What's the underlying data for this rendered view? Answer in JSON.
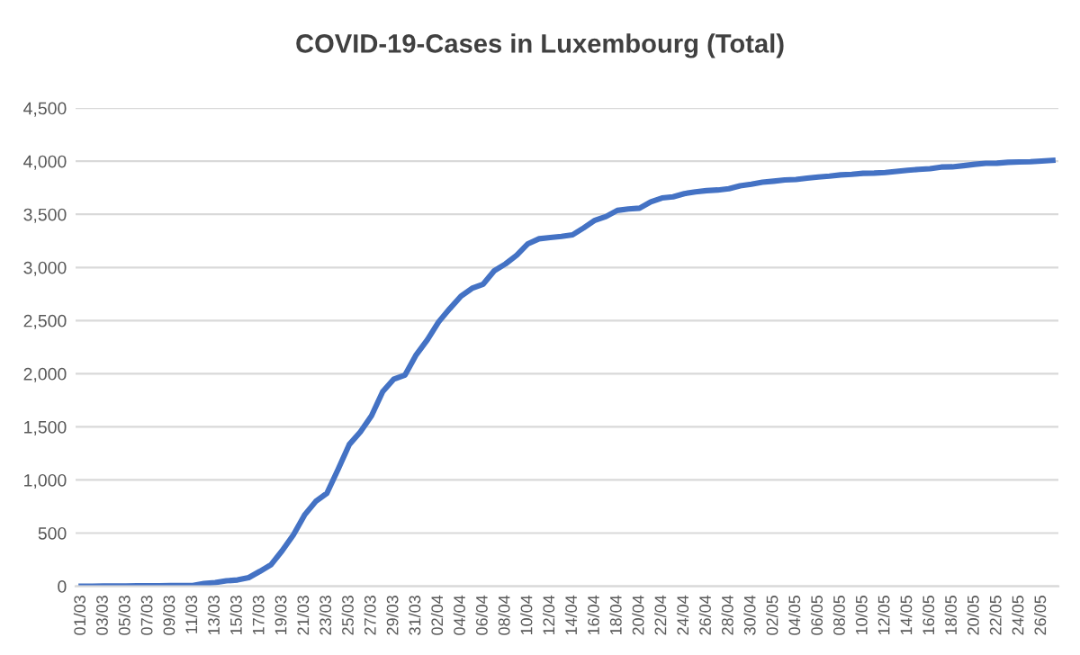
{
  "chart_data": {
    "type": "line",
    "title": "COVID-19-Cases in Luxembourg (Total)",
    "categories": [
      "01/03",
      null,
      "03/03",
      null,
      "05/03",
      null,
      "07/03",
      null,
      "09/03",
      null,
      "11/03",
      null,
      "13/03",
      null,
      "15/03",
      null,
      "17/03",
      null,
      "19/03",
      null,
      "21/03",
      null,
      "23/03",
      null,
      "25/03",
      null,
      "27/03",
      null,
      "29/03",
      null,
      "31/03",
      null,
      "02/04",
      null,
      "04/04",
      null,
      "06/04",
      null,
      "08/04",
      null,
      "10/04",
      null,
      "12/04",
      null,
      "14/04",
      null,
      "16/04",
      null,
      "18/04",
      null,
      "20/04",
      null,
      "22/04",
      null,
      "24/04",
      null,
      "26/04",
      null,
      "28/04",
      null,
      "30/04",
      null,
      "02/05",
      null,
      "04/05",
      null,
      "06/05",
      null,
      "08/05",
      null,
      "10/05",
      null,
      "12/05",
      null,
      "14/05",
      null,
      "16/05",
      null,
      "18/05",
      null,
      "20/05",
      null,
      "22/05",
      null,
      "24/05",
      null,
      "26/05",
      null
    ],
    "series": [
      {
        "color": "#4472c4",
        "values": [
          1,
          1,
          2,
          3,
          3,
          4,
          4,
          5,
          7,
          7,
          7,
          26,
          34,
          51,
          59,
          81,
          140,
          203,
          335,
          484,
          670,
          798,
          875,
          1099,
          1333,
          1453,
          1605,
          1831,
          1950,
          1988,
          2178,
          2319,
          2487,
          2612,
          2729,
          2804,
          2843,
          2970,
          3034,
          3115,
          3223,
          3270,
          3281,
          3292,
          3307,
          3373,
          3444,
          3480,
          3537,
          3550,
          3558,
          3618,
          3654,
          3665,
          3695,
          3711,
          3723,
          3729,
          3741,
          3769,
          3784,
          3802,
          3812,
          3824,
          3828,
          3840,
          3851,
          3859,
          3871,
          3877,
          3886,
          3888,
          3894,
          3904,
          3915,
          3923,
          3930,
          3945,
          3947,
          3958,
          3971,
          3980,
          3981,
          3990,
          3993,
          3995,
          4001,
          4008
        ]
      }
    ],
    "ylim": [
      0,
      4500
    ],
    "yticks": [
      0,
      500,
      {
        "value": 1000,
        "label": "1,000"
      },
      {
        "value": 1500,
        "label": "1,500"
      },
      {
        "value": 2000,
        "label": "2,000"
      },
      {
        "value": 2500,
        "label": "2,500"
      },
      {
        "value": 3000,
        "label": "3,000"
      },
      {
        "value": 3500,
        "label": "3,500"
      },
      {
        "value": 4000,
        "label": "4,000"
      },
      {
        "value": 4500,
        "label": "4,500"
      }
    ],
    "grid": "y",
    "line_style": "solid",
    "legend": false
  }
}
